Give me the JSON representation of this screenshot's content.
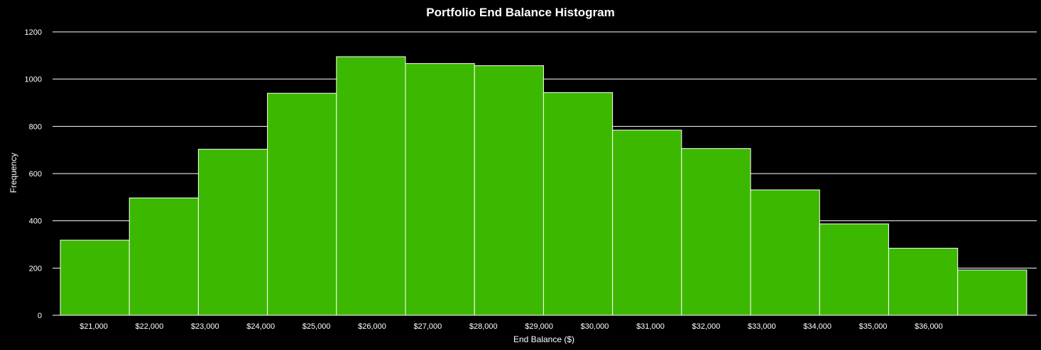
{
  "chart_data": {
    "type": "bar",
    "title": "Portfolio End Balance Histogram",
    "xlabel": "End Balance ($)",
    "ylabel": "Frequency",
    "ylim": [
      0,
      1200
    ],
    "yticks": [
      0,
      200,
      400,
      600,
      800,
      1000,
      1200
    ],
    "xtick_labels": [
      "$21,000",
      "$22,000",
      "$23,000",
      "$24,000",
      "$25,000",
      "$26,000",
      "$27,000",
      "$28,000",
      "$29,000",
      "$30,000",
      "$31,000",
      "$32,000",
      "$33,000",
      "$34,000",
      "$35,000",
      "$36,000"
    ],
    "xrange": [
      20260,
      37940
    ],
    "bins": [
      {
        "start": 20400,
        "end": 21640,
        "value": 318
      },
      {
        "start": 21640,
        "end": 22880,
        "value": 497
      },
      {
        "start": 22880,
        "end": 24120,
        "value": 703
      },
      {
        "start": 24120,
        "end": 25360,
        "value": 940
      },
      {
        "start": 25360,
        "end": 26600,
        "value": 1095
      },
      {
        "start": 26600,
        "end": 27840,
        "value": 1066
      },
      {
        "start": 27840,
        "end": 29080,
        "value": 1057
      },
      {
        "start": 29080,
        "end": 30320,
        "value": 943
      },
      {
        "start": 30320,
        "end": 31560,
        "value": 784
      },
      {
        "start": 31560,
        "end": 32800,
        "value": 706
      },
      {
        "start": 32800,
        "end": 34040,
        "value": 531
      },
      {
        "start": 34040,
        "end": 35280,
        "value": 387
      },
      {
        "start": 35280,
        "end": 36520,
        "value": 284
      },
      {
        "start": 36520,
        "end": 37760,
        "value": 192
      }
    ],
    "bar_color": "#3cb800",
    "grid": true,
    "legend": "none"
  }
}
